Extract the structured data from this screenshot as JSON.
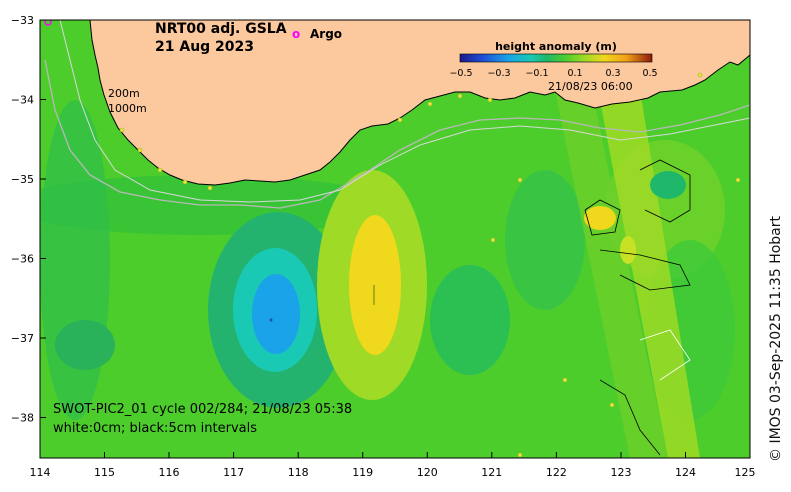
{
  "title": {
    "line1": "NRT00 adj. GSLA",
    "line2": "21 Aug 2023"
  },
  "legend": {
    "argo_symbol": "o",
    "argo_label": "Argo",
    "argo_color": "#ff00ff"
  },
  "colorbar": {
    "title": "height anomaly (m)",
    "ticks": [
      "−0.5",
      "−0.3",
      "−0.1",
      "0.1",
      "0.3",
      "0.5"
    ],
    "colors": [
      "#1a1a8c",
      "#1f4fd6",
      "#1aa3e8",
      "#1ac9b4",
      "#1fb86a",
      "#35c93a",
      "#7fd42a",
      "#c7e224",
      "#f0d81c",
      "#f09e18",
      "#d44a14",
      "#8c1a0f"
    ]
  },
  "swath_time": "21/08/23 06:00",
  "isobaths": [
    "200m",
    "1000m"
  ],
  "annotation": {
    "line1": "SWOT-PIC2_01 cycle 002/284; 21/08/23 05:38",
    "line2": "white:0cm; black:5cm intervals"
  },
  "axes": {
    "x_ticks": [
      "114",
      "115",
      "116",
      "117",
      "118",
      "119",
      "120",
      "121",
      "122",
      "123",
      "124",
      "125"
    ],
    "y_ticks": [
      "−33",
      "−34",
      "−35",
      "−36",
      "−37",
      "−38"
    ]
  },
  "credit": "© IMOS 03-Sep-2025 11:35 Hobart",
  "colors": {
    "land": "#fcc89e",
    "ocean": "#4ccd2c",
    "coast": "#000000",
    "isobath": "#b8b8b8"
  }
}
